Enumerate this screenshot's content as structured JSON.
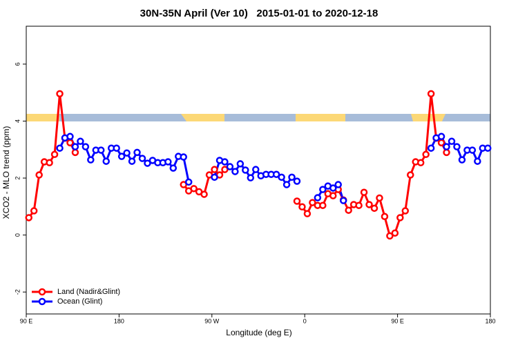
{
  "chart_data": {
    "type": "line",
    "title": "30N-35N April (Ver 10)   2015-01-01 to 2020-12-18",
    "x_label": "Longitude (deg E)",
    "y_label": "XCO2 - MLO trend (ppm)",
    "x": [
      92.5,
      97.5,
      102.5,
      107.5,
      112.5,
      117.5,
      122.5,
      127.5,
      132.5,
      137.5,
      142.5,
      147.5,
      152.5,
      157.5,
      162.5,
      167.5,
      172.5,
      177.5,
      182.5,
      187.5,
      192.5,
      197.5,
      202.5,
      207.5,
      212.5,
      217.5,
      222.5,
      227.5,
      232.5,
      237.5,
      242.5,
      247.5,
      252.5,
      257.5,
      262.5,
      267.5,
      272.5,
      277.5,
      282.5,
      287.5,
      292.5,
      297.5,
      302.5,
      307.5,
      312.5,
      317.5,
      322.5,
      327.5,
      332.5,
      337.5,
      342.5,
      347.5,
      352.5,
      357.5,
      362.5,
      367.5,
      372.5,
      377.5,
      382.5,
      387.5,
      392.5,
      397.5,
      402.5,
      407.5,
      412.5,
      417.5,
      422.5,
      427.5,
      432.5,
      437.5,
      442.5,
      447.5,
      452.5,
      457.5,
      462.5,
      467.5,
      472.5,
      477.5,
      482.5,
      487.5,
      492.5,
      497.5,
      502.5,
      507.5,
      512.5,
      517.5,
      522.5,
      527.5,
      532.5,
      537.5
    ],
    "series": [
      {
        "name": "Land (Nadir&Glint)",
        "color": "#ff0000",
        "values": [
          0.61,
          0.85,
          2.11,
          2.57,
          2.54,
          2.83,
          4.96,
          3.4,
          3.24,
          2.9,
          null,
          null,
          null,
          null,
          null,
          null,
          null,
          null,
          null,
          null,
          null,
          null,
          null,
          null,
          null,
          null,
          null,
          null,
          null,
          null,
          1.77,
          1.55,
          1.63,
          1.52,
          1.43,
          2.11,
          2.3,
          2.11,
          2.3,
          null,
          null,
          null,
          null,
          null,
          null,
          null,
          null,
          null,
          null,
          null,
          null,
          null,
          1.19,
          0.99,
          0.75,
          1.14,
          1.04,
          1.04,
          1.45,
          1.38,
          1.6,
          1.23,
          0.87,
          1.07,
          1.04,
          1.5,
          1.07,
          0.94,
          1.3,
          0.65,
          -0.03,
          0.07,
          0.61,
          0.85,
          2.11,
          2.57,
          2.54,
          2.83,
          4.96,
          3.4,
          3.24,
          2.9,
          null,
          null,
          null,
          null,
          null,
          null,
          null,
          null
        ]
      },
      {
        "name": "Ocean (Glint)",
        "color": "#0000ff",
        "values": [
          null,
          null,
          null,
          null,
          null,
          null,
          3.05,
          3.41,
          3.46,
          3.1,
          3.29,
          3.1,
          2.64,
          2.98,
          2.98,
          2.59,
          3.05,
          3.05,
          2.76,
          2.88,
          2.59,
          2.9,
          2.69,
          2.52,
          2.62,
          2.54,
          2.54,
          2.57,
          2.35,
          2.76,
          2.74,
          1.86,
          null,
          null,
          null,
          null,
          2.03,
          2.62,
          2.57,
          2.4,
          2.23,
          2.5,
          2.28,
          2.01,
          2.3,
          2.08,
          2.13,
          2.13,
          2.13,
          2.03,
          1.77,
          2.03,
          1.89,
          null,
          null,
          null,
          1.31,
          1.6,
          1.72,
          1.65,
          1.77,
          1.21,
          null,
          null,
          null,
          null,
          null,
          null,
          null,
          null,
          null,
          null,
          null,
          null,
          null,
          null,
          null,
          null,
          3.05,
          3.41,
          3.46,
          3.1,
          3.29,
          3.1,
          2.64,
          2.98,
          2.98,
          2.59,
          3.05,
          3.05
        ]
      }
    ],
    "xlim": [
      90,
      540
    ],
    "xticks": [
      {
        "value": 90,
        "label": "90 E"
      },
      180,
      {
        "value": 270,
        "label": "90 W"
      },
      {
        "value": 360,
        "label": "0"
      },
      {
        "value": 450,
        "label": "90 E"
      },
      {
        "value": 540,
        "label": "180"
      }
    ],
    "ylim": [
      -2.77,
      7.33
    ],
    "yticks": [
      -2,
      0,
      2,
      4,
      6
    ],
    "grid": false,
    "legend": "bottom-left"
  }
}
